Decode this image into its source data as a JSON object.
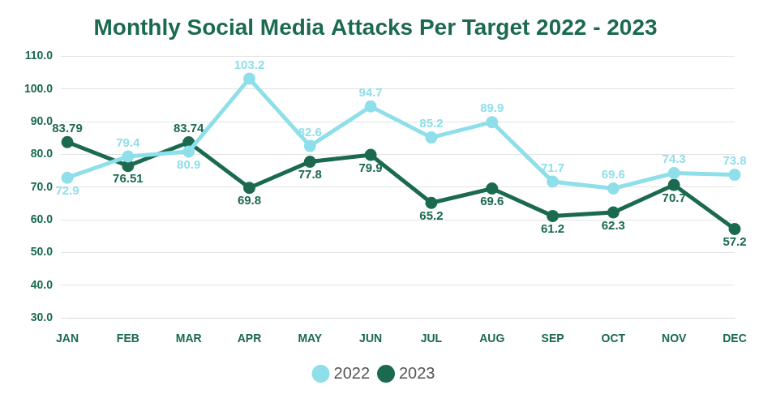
{
  "chart_data": {
    "type": "line",
    "title": "Monthly Social Media Attacks Per Target 2022 - 2023",
    "categories": [
      "JAN",
      "FEB",
      "MAR",
      "APR",
      "MAY",
      "JUN",
      "JUL",
      "AUG",
      "SEP",
      "OCT",
      "NOV",
      "DEC"
    ],
    "series": [
      {
        "name": "2022",
        "color": "#8fdfea",
        "marker": "circle",
        "line_style": "solid",
        "values": [
          72.9,
          79.4,
          80.9,
          103.2,
          82.6,
          94.7,
          85.2,
          89.9,
          71.7,
          69.6,
          74.3,
          73.8
        ]
      },
      {
        "name": "2023",
        "color": "#1b6a50",
        "marker": "circle",
        "line_style": "solid",
        "values": [
          83.79,
          76.51,
          83.74,
          69.8,
          77.8,
          79.9,
          65.2,
          69.6,
          61.2,
          62.3,
          70.7,
          57.2
        ]
      }
    ],
    "ylim": [
      30,
      110
    ],
    "yticks": [
      {
        "value": 30,
        "label": "30.0"
      },
      {
        "value": 40,
        "label": "40.0"
      },
      {
        "value": 50,
        "label": "50.0"
      },
      {
        "value": 60,
        "label": "60.0"
      },
      {
        "value": 70,
        "label": "70.0"
      },
      {
        "value": 80,
        "label": "80.0"
      },
      {
        "value": 90,
        "label": "90.0"
      },
      {
        "value": 100,
        "label": "100.0"
      },
      {
        "value": 110,
        "label": "110.0"
      }
    ],
    "grid": true,
    "legend": "bottom",
    "data_labels": true
  }
}
